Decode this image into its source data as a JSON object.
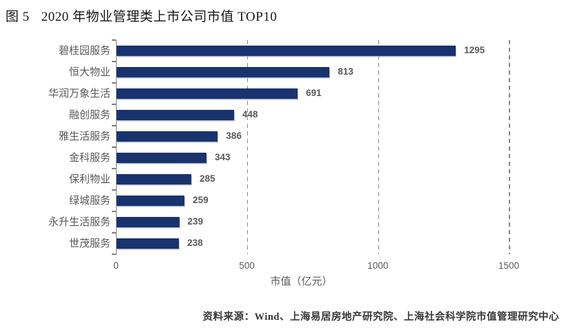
{
  "figure": {
    "label": "图 5",
    "title": "2020 年物业管理类上市公司市值 TOP10"
  },
  "chart_data": {
    "type": "bar",
    "orientation": "horizontal",
    "title": "2020 年物业管理类上市公司市值 TOP10",
    "categories": [
      "碧桂园服务",
      "恒大物业",
      "华润万象生活",
      "融创服务",
      "雅生活服务",
      "金科服务",
      "保利物业",
      "绿城服务",
      "永升生活服务",
      "世茂服务"
    ],
    "values": [
      1295,
      813,
      691,
      448,
      386,
      343,
      285,
      259,
      239,
      238
    ],
    "xlabel": "市值（亿元）",
    "x_ticks": [
      0,
      500,
      1000,
      1500
    ],
    "xlim": [
      0,
      1500
    ],
    "grid": "vertical-dashed",
    "legend_visible": false,
    "bar_color": "#19336E",
    "text_color": "#595959",
    "axis_color": "#7F7F7F"
  },
  "source_note": "资料来源：Wind、上海易居房地产研究院、上海社会科学院市值管理研究中心"
}
